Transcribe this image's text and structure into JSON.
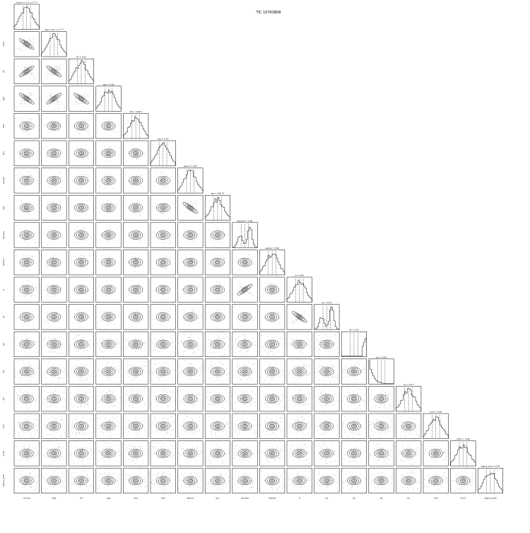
{
  "chart_data": {
    "type": "corner",
    "title": "TIC 10763808",
    "parameters": [
      "rhoum",
      "mstr",
      "ldr",
      "age",
      "dist",
      "ebv",
      "period",
      "tpo",
      "secosw",
      "sesinw",
      "b",
      "q1",
      "q2",
      "q3",
      "loc",
      "lum",
      "slope",
      "sigma_phot"
    ],
    "axis_labels": [
      "rhoum",
      "mstr",
      "ldr",
      "age",
      "dist",
      "ebv",
      "period",
      "tpo",
      "secosw",
      "sesinw",
      "b",
      "q1",
      "q2",
      "q3",
      "loc",
      "lum",
      "lum2",
      "sigma_phot"
    ],
    "diag_titles": [
      "rhoum = 1.3 ₋₀.₀₁⁺⁰·⁰¹",
      "mstr = 0.5 ₋₀.₀₁⁺⁰·⁰¹",
      "ldr = 0.55",
      "age = 9.18",
      "dist = 169.6",
      "ebv = 1.07",
      "period = 0.67",
      "tpo = 246.74",
      "secosw = -0.08",
      "sesinw = 0.00",
      "b = 0.84",
      "q1 = 0.13",
      "q2 = 0.01",
      "q3 = 0.007",
      "loc = 0.17",
      "lum = -0.38",
      "lum2 = -4.88",
      "sigma_phot = 0.76"
    ],
    "marginal_style": "histogram with 16/50/84 percentile dashed lines",
    "pair_style": "2D density contours with scatter points",
    "grid": false,
    "legend": "none"
  },
  "figure": {
    "period_axis_note": "tpo = -0.4e3 ×10⁻⁶"
  }
}
